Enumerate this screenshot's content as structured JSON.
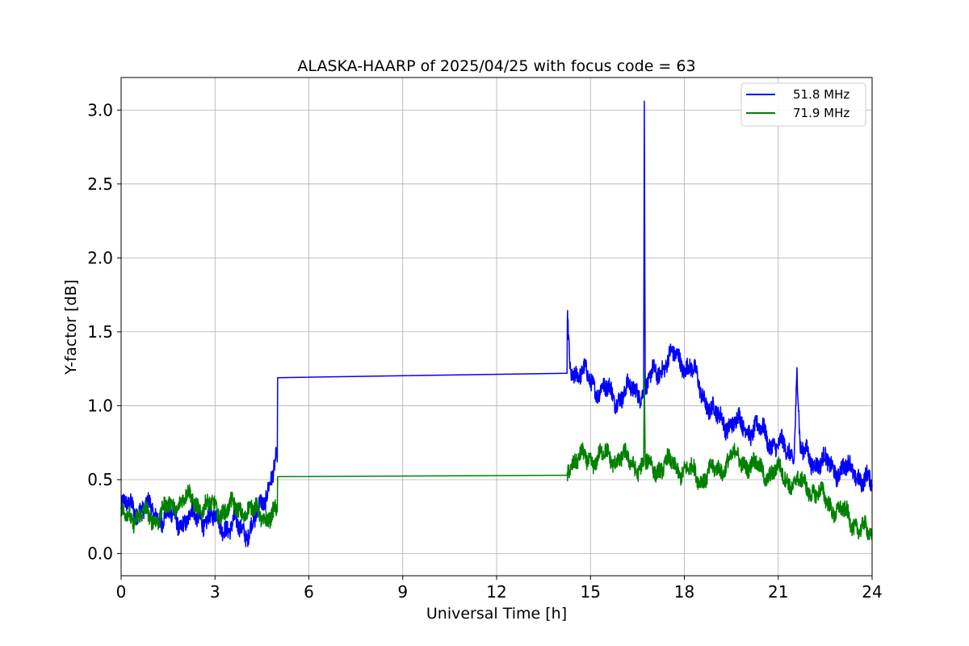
{
  "chart_data": {
    "type": "line",
    "title": "ALASKA-HAARP of 2025/04/25 with focus code = 63",
    "xlabel": "Universal Time [h]",
    "ylabel": "Y-factor [dB]",
    "xlim": [
      0,
      24
    ],
    "ylim": [
      -0.15,
      3.22
    ],
    "xticks": [
      0,
      3,
      6,
      9,
      12,
      15,
      18,
      21,
      24
    ],
    "xtick_labels": [
      "0",
      "3",
      "6",
      "9",
      "12",
      "15",
      "18",
      "21",
      "24"
    ],
    "yticks": [
      0.0,
      0.5,
      1.0,
      1.5,
      2.0,
      2.5,
      3.0
    ],
    "ytick_labels": [
      "0.0",
      "0.5",
      "1.0",
      "1.5",
      "2.0",
      "2.5",
      "3.0"
    ],
    "grid": true,
    "legend_position": "top-right",
    "series": [
      {
        "name": "51.8 MHz",
        "color": "#0000ff",
        "noise": 0.06,
        "points": [
          [
            0.0,
            0.3
          ],
          [
            0.5,
            0.32
          ],
          [
            1.0,
            0.28
          ],
          [
            1.5,
            0.24
          ],
          [
            2.0,
            0.22
          ],
          [
            2.5,
            0.25
          ],
          [
            3.0,
            0.22
          ],
          [
            3.5,
            0.18
          ],
          [
            4.0,
            0.16
          ],
          [
            4.3,
            0.22
          ],
          [
            4.6,
            0.38
          ],
          [
            4.8,
            0.55
          ],
          [
            4.95,
            0.62
          ],
          [
            4.99,
            0.62
          ],
          [
            5.0,
            1.19
          ],
          [
            14.25,
            1.22
          ],
          [
            14.26,
            1.58
          ],
          [
            14.35,
            1.26
          ],
          [
            14.8,
            1.2
          ],
          [
            15.3,
            1.12
          ],
          [
            15.8,
            1.06
          ],
          [
            16.3,
            1.1
          ],
          [
            16.7,
            1.12
          ],
          [
            16.72,
            3.06
          ],
          [
            16.75,
            1.1
          ],
          [
            17.0,
            1.2
          ],
          [
            17.4,
            1.3
          ],
          [
            17.8,
            1.33
          ],
          [
            18.2,
            1.25
          ],
          [
            18.6,
            1.08
          ],
          [
            19.0,
            0.92
          ],
          [
            19.5,
            0.88
          ],
          [
            20.0,
            0.86
          ],
          [
            20.5,
            0.82
          ],
          [
            21.0,
            0.72
          ],
          [
            21.5,
            0.68
          ],
          [
            21.6,
            1.24
          ],
          [
            21.7,
            0.68
          ],
          [
            22.0,
            0.65
          ],
          [
            22.5,
            0.6
          ],
          [
            23.0,
            0.57
          ],
          [
            23.5,
            0.55
          ],
          [
            24.0,
            0.45
          ]
        ]
      },
      {
        "name": "71.9 MHz",
        "color": "#008000",
        "noise": 0.055,
        "points": [
          [
            0.0,
            0.25
          ],
          [
            0.5,
            0.26
          ],
          [
            1.0,
            0.24
          ],
          [
            1.5,
            0.3
          ],
          [
            2.0,
            0.38
          ],
          [
            2.5,
            0.33
          ],
          [
            3.0,
            0.3
          ],
          [
            3.5,
            0.3
          ],
          [
            4.0,
            0.3
          ],
          [
            4.5,
            0.26
          ],
          [
            4.99,
            0.25
          ],
          [
            5.0,
            0.52
          ],
          [
            14.25,
            0.53
          ],
          [
            14.3,
            0.62
          ],
          [
            15.0,
            0.64
          ],
          [
            15.5,
            0.66
          ],
          [
            16.0,
            0.64
          ],
          [
            16.5,
            0.6
          ],
          [
            16.7,
            0.58
          ],
          [
            16.72,
            1.22
          ],
          [
            16.75,
            0.6
          ],
          [
            17.0,
            0.58
          ],
          [
            17.5,
            0.6
          ],
          [
            18.0,
            0.57
          ],
          [
            18.5,
            0.52
          ],
          [
            19.0,
            0.55
          ],
          [
            19.5,
            0.65
          ],
          [
            20.0,
            0.62
          ],
          [
            20.5,
            0.55
          ],
          [
            21.0,
            0.55
          ],
          [
            21.5,
            0.48
          ],
          [
            22.0,
            0.45
          ],
          [
            22.5,
            0.36
          ],
          [
            23.0,
            0.28
          ],
          [
            23.5,
            0.2
          ],
          [
            24.0,
            0.1
          ]
        ]
      }
    ]
  }
}
